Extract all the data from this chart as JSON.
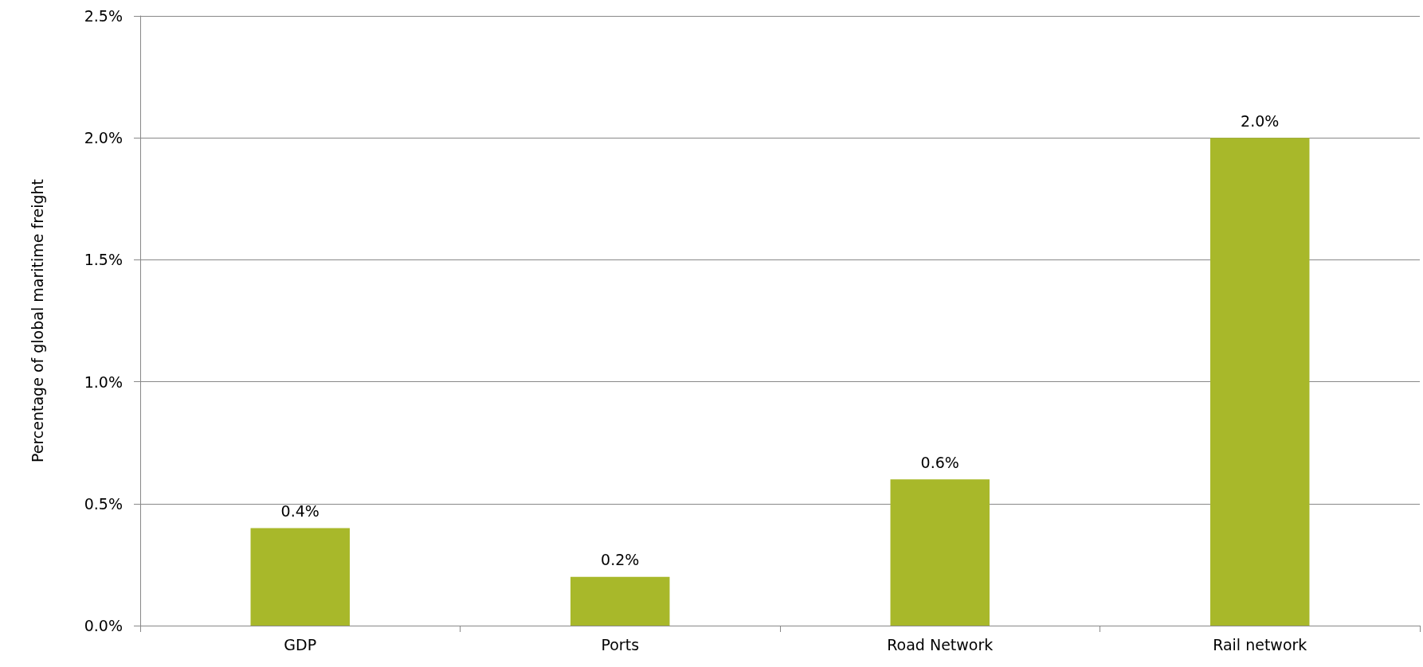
{
  "chart_data": {
    "type": "bar",
    "ylabel": "Percentage of global maritime freight",
    "categories": [
      "GDP",
      "Ports",
      "Road Network",
      "Rail network"
    ],
    "values": [
      0.4,
      0.2,
      0.6,
      2.0
    ],
    "color": "#a8b82a",
    "value_labels": [
      "0.4%",
      "0.2%",
      "0.6%",
      "2.0%"
    ],
    "ylim": [
      0,
      2.5
    ],
    "yticks": [
      {
        "value": 0,
        "label": "0.0%"
      },
      {
        "value": 0.5,
        "label": "0.5%"
      },
      {
        "value": 1,
        "label": "1.0%"
      },
      {
        "value": 1.5,
        "label": "1.5%"
      },
      {
        "value": 2,
        "label": "2.0%"
      },
      {
        "value": 2.5,
        "label": "2.5%"
      }
    ],
    "grid": "y"
  }
}
